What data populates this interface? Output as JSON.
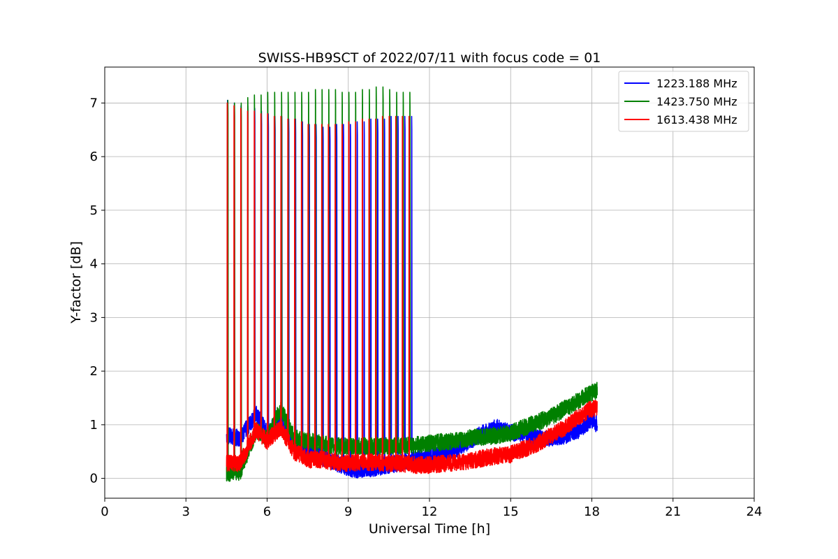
{
  "chart_data": {
    "type": "line",
    "title": "SWISS-HB9SCT of 2022/07/11 with focus code = 01",
    "xlabel": "Universal Time [h]",
    "ylabel": "Y-factor [dB]",
    "xlim": [
      0,
      24
    ],
    "ylim": [
      -0.37,
      7.67
    ],
    "xticks": [
      0,
      3,
      6,
      9,
      12,
      15,
      18,
      21,
      24
    ],
    "yticks": [
      0,
      1,
      2,
      3,
      4,
      5,
      6,
      7
    ],
    "grid": true,
    "legend_position": "top-right",
    "data_range_h": [
      4.5,
      18.2
    ],
    "cal_peak_period_h": 0.25,
    "series": [
      {
        "name": "1223.188 MHz",
        "color": "#0000ff",
        "baseline_h": [
          4.5,
          5.0,
          5.6,
          6.0,
          6.5,
          7.0,
          7.5,
          8.0,
          8.5,
          9.0,
          9.5,
          10.0,
          10.5,
          11.0,
          11.5,
          12.0,
          12.5,
          13.0,
          13.5,
          14.0,
          14.5,
          15.0,
          15.5,
          16.0,
          16.5,
          17.0,
          17.5,
          18.0,
          18.2
        ],
        "baseline_db": [
          0.8,
          0.75,
          1.2,
          0.85,
          1.1,
          0.7,
          0.5,
          0.4,
          0.3,
          0.2,
          0.15,
          0.2,
          0.25,
          0.3,
          0.35,
          0.4,
          0.45,
          0.55,
          0.7,
          0.85,
          0.95,
          0.85,
          0.85,
          0.75,
          0.75,
          0.8,
          0.9,
          1.1,
          1.0
        ],
        "peak_db": [
          7.05,
          7.0,
          6.95,
          6.95,
          6.9,
          6.85,
          6.8,
          6.75,
          6.75,
          6.7,
          6.7,
          6.65,
          6.6,
          6.6,
          6.55,
          6.55,
          6.6,
          6.6,
          6.6,
          6.65,
          6.65,
          6.7,
          6.7,
          6.7,
          6.75,
          6.75,
          6.75,
          6.75
        ]
      },
      {
        "name": "1423.750 MHz",
        "color": "#008000",
        "baseline_h": [
          4.5,
          5.0,
          5.6,
          6.0,
          6.5,
          7.0,
          7.5,
          8.0,
          8.5,
          9.0,
          9.5,
          10.0,
          10.5,
          11.0,
          11.5,
          12.0,
          12.5,
          13.0,
          13.5,
          14.0,
          14.5,
          15.0,
          15.5,
          16.0,
          16.5,
          17.0,
          17.5,
          18.0,
          18.2
        ],
        "baseline_db": [
          0.1,
          0.12,
          0.9,
          0.75,
          1.3,
          0.75,
          0.7,
          0.65,
          0.6,
          0.6,
          0.6,
          0.6,
          0.6,
          0.6,
          0.62,
          0.65,
          0.68,
          0.7,
          0.75,
          0.78,
          0.8,
          0.85,
          0.95,
          1.05,
          1.15,
          1.3,
          1.45,
          1.6,
          1.65
        ],
        "peak_db": [
          7.05,
          7.0,
          7.0,
          7.1,
          7.15,
          7.15,
          7.2,
          7.2,
          7.2,
          7.2,
          7.2,
          7.2,
          7.2,
          7.25,
          7.25,
          7.25,
          7.25,
          7.2,
          7.2,
          7.2,
          7.25,
          7.25,
          7.3,
          7.3,
          7.25,
          7.2,
          7.2,
          7.2
        ]
      },
      {
        "name": "1613.438 MHz",
        "color": "#ff0000",
        "baseline_h": [
          4.5,
          5.0,
          5.6,
          6.0,
          6.5,
          7.0,
          7.5,
          8.0,
          8.5,
          9.0,
          9.5,
          10.0,
          10.5,
          11.0,
          11.5,
          12.0,
          12.5,
          13.0,
          13.5,
          14.0,
          14.5,
          15.0,
          15.5,
          16.0,
          16.5,
          17.0,
          17.5,
          18.0,
          18.2
        ],
        "baseline_db": [
          0.28,
          0.28,
          0.9,
          0.7,
          0.95,
          0.5,
          0.35,
          0.35,
          0.3,
          0.28,
          0.3,
          0.3,
          0.28,
          0.28,
          0.25,
          0.25,
          0.28,
          0.3,
          0.33,
          0.38,
          0.42,
          0.45,
          0.55,
          0.65,
          0.8,
          0.95,
          1.15,
          1.3,
          1.3
        ],
        "peak_db": [
          7.0,
          6.95,
          6.9,
          6.85,
          6.85,
          6.8,
          6.8,
          6.75,
          6.75,
          6.7,
          6.7,
          6.65,
          6.6,
          6.6,
          6.6,
          6.6,
          6.6,
          6.6,
          6.65,
          6.65,
          6.7,
          6.7,
          6.7,
          6.75,
          6.75,
          6.75,
          6.75,
          6.75
        ]
      }
    ]
  }
}
